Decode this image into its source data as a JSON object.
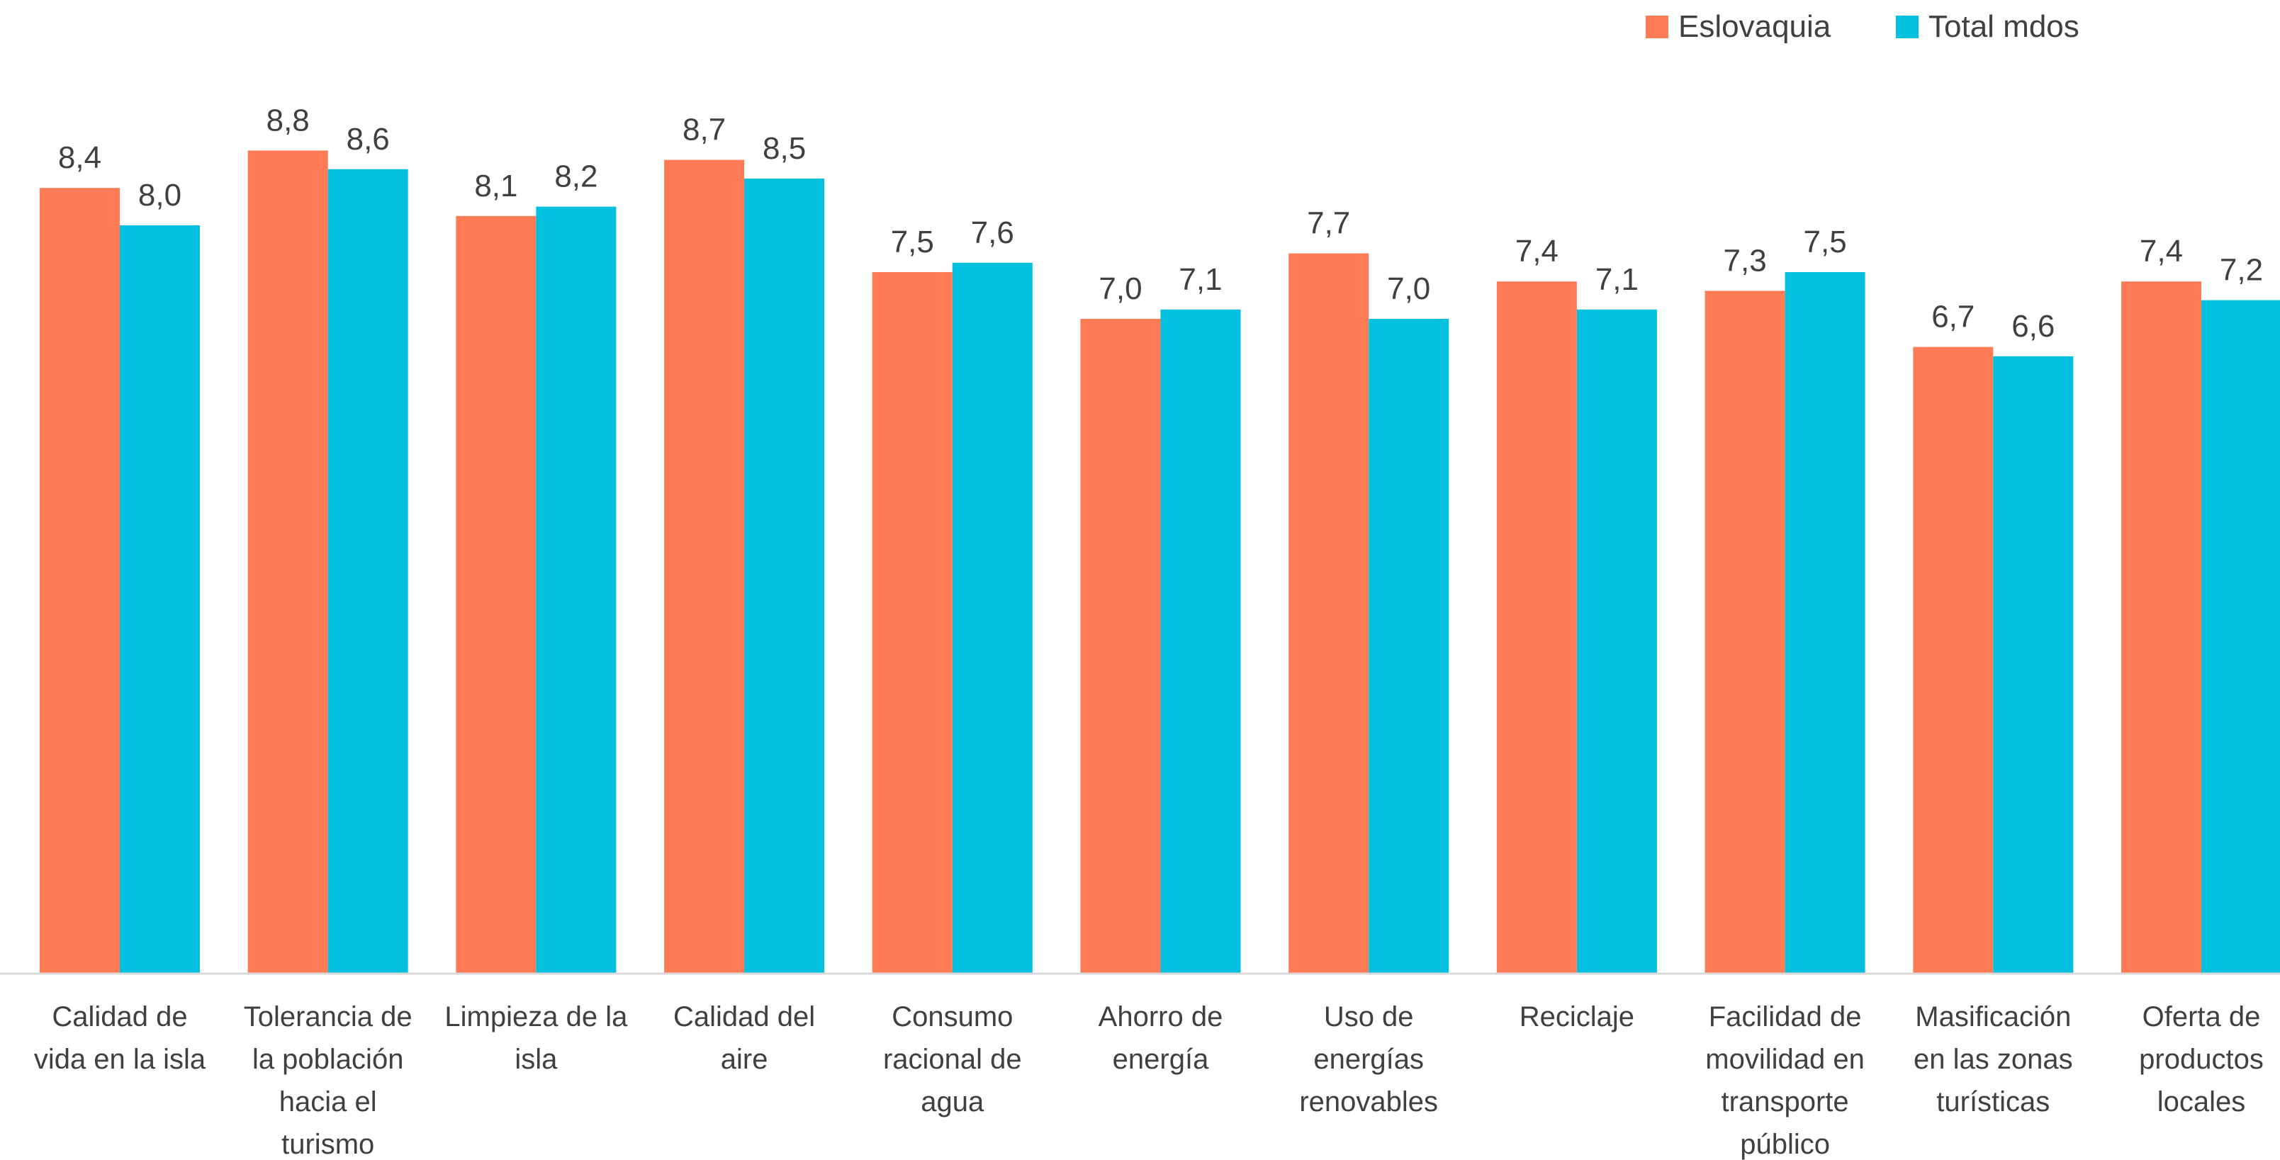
{
  "chart_data": {
    "type": "bar",
    "categories": [
      [
        "Calidad de",
        "vida en la isla"
      ],
      [
        "Tolerancia de",
        "la población",
        "hacia el",
        "turismo"
      ],
      [
        "Limpieza de la",
        "isla"
      ],
      [
        "Calidad del",
        "aire"
      ],
      [
        "Consumo",
        "racional de",
        "agua"
      ],
      [
        "Ahorro de",
        "energía"
      ],
      [
        "Uso de",
        "energías",
        "renovables"
      ],
      [
        "Reciclaje"
      ],
      [
        "Facilidad de",
        "movilidad en",
        "transporte",
        "público"
      ],
      [
        "Masificación",
        "en las zonas",
        "turísticas"
      ],
      [
        "Oferta de",
        "productos",
        "locales"
      ]
    ],
    "series": [
      {
        "name": "Eslovaquia",
        "color": "#FF7B55",
        "values": [
          8.4,
          8.8,
          8.1,
          8.7,
          7.5,
          7.0,
          7.7,
          7.4,
          7.3,
          6.7,
          7.4
        ],
        "labels": [
          "8,4",
          "8,8",
          "8,1",
          "8,7",
          "7,5",
          "7,0",
          "7,7",
          "7,4",
          "7,3",
          "6,7",
          "7,4"
        ]
      },
      {
        "name": "Total mdos",
        "color": "#03C0DE",
        "values": [
          8.0,
          8.6,
          8.2,
          8.5,
          7.6,
          7.1,
          7.0,
          7.1,
          7.5,
          6.6,
          7.2
        ],
        "labels": [
          "8,0",
          "8,6",
          "8,2",
          "8,5",
          "7,6",
          "7,1",
          "7,0",
          "7,1",
          "7,5",
          "6,6",
          "7,2"
        ]
      }
    ],
    "title": "",
    "xlabel": "",
    "ylabel": "",
    "ylim": [
      0,
      10
    ],
    "grid": false,
    "legend": "top-right",
    "axis_color": "#D9D9D9"
  }
}
